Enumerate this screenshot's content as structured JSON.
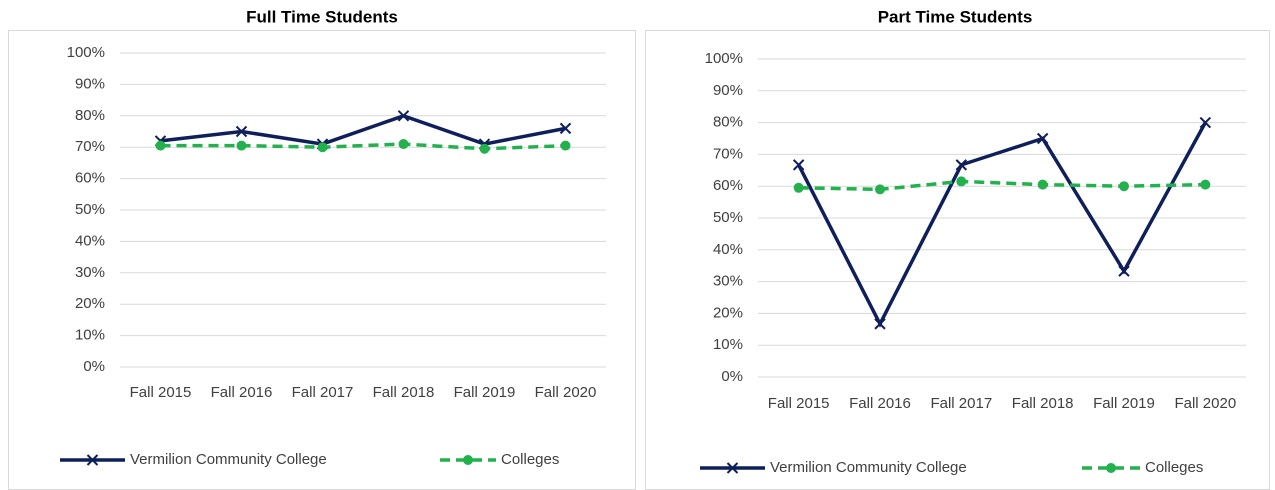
{
  "chart_data": [
    {
      "type": "line",
      "title": "Full Time Students",
      "categories": [
        "Fall 2015",
        "Fall 2016",
        "Fall 2017",
        "Fall 2018",
        "Fall 2019",
        "Fall 2020"
      ],
      "series": [
        {
          "name": "Vermilion Community College",
          "color": "#0f1f5c",
          "marker": "x",
          "line_style": "solid",
          "values": [
            72,
            75,
            71,
            80,
            71,
            76
          ]
        },
        {
          "name": "Colleges",
          "color": "#22b14c",
          "marker": "circle",
          "line_style": "dashed",
          "values": [
            70.5,
            70.5,
            70,
            71,
            69.5,
            70.5
          ]
        }
      ],
      "ylim": [
        0,
        100
      ],
      "yticks": [
        {
          "value": 0,
          "label": "0%"
        },
        {
          "value": 10,
          "label": "10%"
        },
        {
          "value": 20,
          "label": "20%"
        },
        {
          "value": 30,
          "label": "30%"
        },
        {
          "value": 40,
          "label": "40%"
        },
        {
          "value": 50,
          "label": "50%"
        },
        {
          "value": 60,
          "label": "60%"
        },
        {
          "value": 70,
          "label": "70%"
        },
        {
          "value": 80,
          "label": "80%"
        },
        {
          "value": 90,
          "label": "90%"
        },
        {
          "value": 100,
          "label": "100%"
        }
      ],
      "grid": true,
      "legend": "bottom"
    },
    {
      "type": "line",
      "title": "Part Time Students",
      "categories": [
        "Fall 2015",
        "Fall 2016",
        "Fall 2017",
        "Fall 2018",
        "Fall 2019",
        "Fall 2020"
      ],
      "series": [
        {
          "name": "Vermilion Community College",
          "color": "#0f1f5c",
          "marker": "x",
          "line_style": "solid",
          "values": [
            66.7,
            16.7,
            66.7,
            75,
            33.3,
            80
          ]
        },
        {
          "name": "Colleges",
          "color": "#22b14c",
          "marker": "circle",
          "line_style": "dashed",
          "values": [
            59.5,
            59,
            61.5,
            60.5,
            60,
            60.5
          ]
        }
      ],
      "ylim": [
        0,
        100
      ],
      "yticks": [
        {
          "value": 0,
          "label": "0%"
        },
        {
          "value": 10,
          "label": "10%"
        },
        {
          "value": 20,
          "label": "20%"
        },
        {
          "value": 30,
          "label": "30%"
        },
        {
          "value": 40,
          "label": "40%"
        },
        {
          "value": 50,
          "label": "50%"
        },
        {
          "value": 60,
          "label": "60%"
        },
        {
          "value": 70,
          "label": "70%"
        },
        {
          "value": 80,
          "label": "80%"
        },
        {
          "value": 90,
          "label": "90%"
        },
        {
          "value": 100,
          "label": "100%"
        }
      ],
      "grid": true,
      "legend": "bottom"
    }
  ]
}
